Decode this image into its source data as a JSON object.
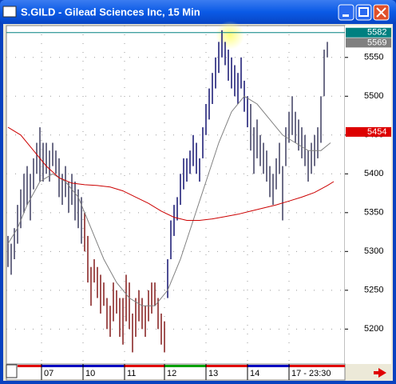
{
  "chart_data": {
    "type": "hilo",
    "title": "S.GILD - Gilead Sciences Inc, 15 Min",
    "xlim": [
      -0.5,
      105.5
    ],
    "ylim": [
      5155,
      5591
    ],
    "yticks": [
      5200,
      5250,
      5300,
      5350,
      5400,
      5450,
      5500,
      5550
    ],
    "xticks": [
      {
        "value": 10.5,
        "label": "07"
      },
      {
        "value": 23.5,
        "label": "10"
      },
      {
        "value": 36.5,
        "label": "11"
      },
      {
        "value": 49,
        "label": "12"
      },
      {
        "value": 62,
        "label": "13"
      },
      {
        "value": 75,
        "label": "14"
      },
      {
        "value": 88,
        "label": "17 - 23:30"
      }
    ],
    "grid": true,
    "series": [
      {
        "color": "#4a4a6a",
        "x": [
          0,
          1,
          2,
          3,
          4,
          5,
          6,
          7,
          8,
          9,
          10,
          11,
          12,
          13,
          14,
          15,
          16,
          17,
          18,
          19,
          20,
          21,
          22,
          23
        ],
        "low": [
          5280,
          5270,
          5290,
          5310,
          5330,
          5350,
          5360,
          5340,
          5380,
          5400,
          5390,
          5390,
          5400,
          5390,
          5410,
          5400,
          5370,
          5360,
          5370,
          5350,
          5360,
          5340,
          5330,
          5310
        ],
        "high": [
          5320,
          5310,
          5330,
          5360,
          5380,
          5400,
          5410,
          5400,
          5420,
          5440,
          5460,
          5440,
          5440,
          5430,
          5440,
          5430,
          5420,
          5400,
          5410,
          5390,
          5400,
          5390,
          5380,
          5370
        ]
      },
      {
        "color": "#8a2a2a",
        "x": [
          24,
          25,
          26,
          27,
          28,
          29,
          30,
          31,
          32,
          33,
          34,
          35,
          36,
          37,
          38,
          39,
          40,
          41,
          42,
          43,
          44,
          45,
          46,
          47,
          48,
          49
        ],
        "low": [
          5300,
          5260,
          5230,
          5260,
          5240,
          5220,
          5230,
          5200,
          5190,
          5210,
          5220,
          5190,
          5180,
          5210,
          5200,
          5170,
          5190,
          5210,
          5200,
          5190,
          5210,
          5220,
          5230,
          5200,
          5180,
          5170
        ],
        "high": [
          5350,
          5320,
          5280,
          5290,
          5280,
          5270,
          5260,
          5240,
          5230,
          5260,
          5250,
          5240,
          5240,
          5270,
          5260,
          5220,
          5240,
          5250,
          5240,
          5230,
          5250,
          5260,
          5260,
          5240,
          5220,
          5210
        ]
      },
      {
        "color": "#22227a",
        "x": [
          50,
          51,
          52,
          53,
          54,
          55,
          56,
          57,
          58,
          59,
          60,
          61,
          62,
          63,
          64,
          65,
          66,
          67,
          68,
          69,
          70,
          71,
          72,
          73,
          74,
          75
        ],
        "low": [
          5240,
          5290,
          5320,
          5340,
          5360,
          5380,
          5390,
          5400,
          5410,
          5400,
          5390,
          5420,
          5450,
          5470,
          5490,
          5510,
          5530,
          5550,
          5540,
          5520,
          5510,
          5500,
          5490,
          5510,
          5480,
          5460
        ],
        "high": [
          5290,
          5340,
          5360,
          5370,
          5400,
          5420,
          5420,
          5430,
          5450,
          5440,
          5420,
          5460,
          5490,
          5510,
          5530,
          5550,
          5570,
          5585,
          5570,
          5560,
          5550,
          5540,
          5530,
          5550,
          5520,
          5500
        ]
      },
      {
        "color": "#4a4a6a",
        "x": [
          76,
          77,
          78,
          79,
          80,
          81,
          82,
          83,
          84,
          85,
          86,
          87,
          88,
          89,
          90,
          91,
          92,
          93,
          94,
          95,
          96,
          97,
          98,
          99,
          100
        ],
        "low": [
          5430,
          5400,
          5420,
          5410,
          5400,
          5390,
          5370,
          5360,
          5380,
          5400,
          5340,
          5410,
          5440,
          5450,
          5440,
          5430,
          5420,
          5410,
          5390,
          5400,
          5410,
          5420,
          5440,
          5500,
          5550
        ],
        "high": [
          5490,
          5460,
          5470,
          5450,
          5440,
          5430,
          5410,
          5400,
          5420,
          5440,
          5410,
          5460,
          5480,
          5500,
          5480,
          5470,
          5460,
          5450,
          5430,
          5440,
          5450,
          5460,
          5500,
          5560,
          5570
        ]
      }
    ],
    "lines": [
      {
        "color": "#808080",
        "x": [
          0,
          3,
          6,
          10,
          14,
          18,
          22,
          26,
          30,
          34,
          38,
          42,
          46,
          50,
          54,
          58,
          62,
          66,
          70,
          74,
          78,
          82,
          86,
          90,
          94,
          98,
          101
        ],
        "values": [
          5310,
          5330,
          5360,
          5390,
          5400,
          5390,
          5370,
          5330,
          5290,
          5260,
          5240,
          5230,
          5230,
          5250,
          5290,
          5340,
          5390,
          5440,
          5480,
          5500,
          5490,
          5470,
          5450,
          5440,
          5430,
          5430,
          5440
        ]
      },
      {
        "color": "#cc0000",
        "x": [
          0,
          4,
          8,
          12,
          16,
          20,
          24,
          28,
          32,
          36,
          40,
          44,
          48,
          52,
          56,
          60,
          64,
          68,
          72,
          76,
          80,
          84,
          88,
          92,
          96,
          100,
          102
        ],
        "values": [
          5460,
          5450,
          5430,
          5410,
          5395,
          5388,
          5386,
          5385,
          5383,
          5378,
          5370,
          5362,
          5352,
          5344,
          5340,
          5340,
          5342,
          5345,
          5348,
          5352,
          5356,
          5360,
          5365,
          5370,
          5376,
          5385,
          5390
        ]
      }
    ],
    "price_markers": [
      {
        "value": 5582,
        "color": "#008080"
      },
      {
        "value": 5569,
        "color": "#808080"
      },
      {
        "value": 5454,
        "color": "#dd0000"
      }
    ]
  }
}
